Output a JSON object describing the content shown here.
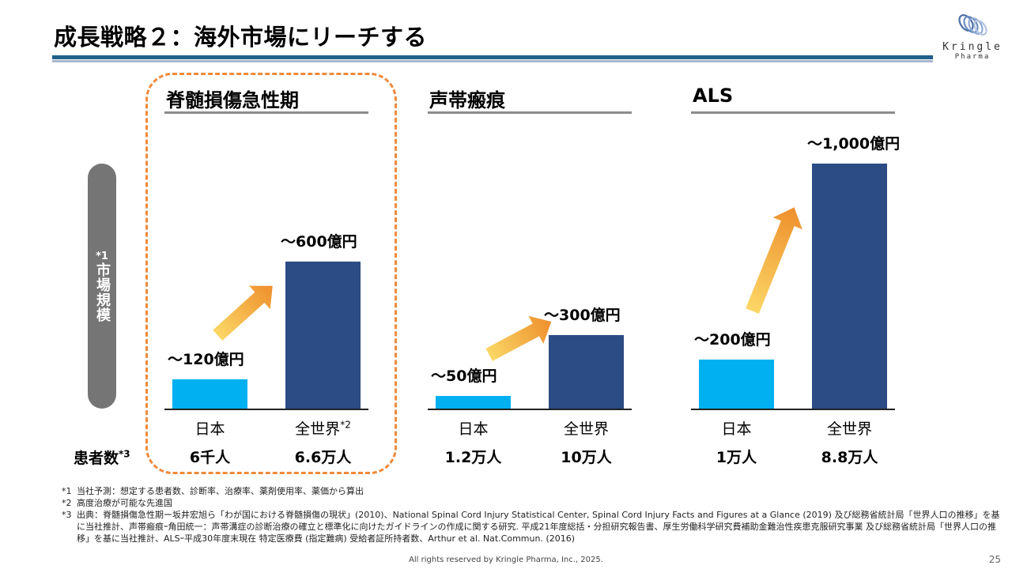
{
  "header": {
    "title": "成長戦略２：海外市場にリーチする",
    "logo": {
      "brand": "Kringle",
      "sub": "Pharma",
      "icon": "kringle-spiral-logo"
    }
  },
  "side_label": {
    "asterisk": "*1",
    "text": "市場規模"
  },
  "row_label": {
    "text": "患者数",
    "sup": "*3"
  },
  "colors": {
    "japan_bar": "#00b0f0",
    "world_bar": "#2b4c84",
    "highlight_border": "#ef8a3b",
    "arrow_start": "#fbd766",
    "arrow_end": "#ee8f2c"
  },
  "chart_data": [
    {
      "type": "bar",
      "title": "脊髄損傷急性期",
      "highlighted": true,
      "categories": [
        "日本",
        "全世界"
      ],
      "category_sups": [
        "",
        "*2"
      ],
      "values": [
        120,
        600
      ],
      "value_labels": [
        "～120億円",
        "～600億円"
      ],
      "patient_counts": [
        "6千人",
        "6.6万人"
      ],
      "unit": "億円",
      "ylim": [
        0,
        1000
      ]
    },
    {
      "type": "bar",
      "title": "声帯瘢痕",
      "highlighted": false,
      "categories": [
        "日本",
        "全世界"
      ],
      "category_sups": [
        "",
        ""
      ],
      "values": [
        50,
        300
      ],
      "value_labels": [
        "～50億円",
        "～300億円"
      ],
      "patient_counts": [
        "1.2万人",
        "10万人"
      ],
      "unit": "億円",
      "ylim": [
        0,
        1000
      ]
    },
    {
      "type": "bar",
      "title": "ALS",
      "highlighted": false,
      "categories": [
        "日本",
        "全世界"
      ],
      "category_sups": [
        "",
        ""
      ],
      "values": [
        200,
        1000
      ],
      "value_labels": [
        "～200億円",
        "～1,000億円"
      ],
      "patient_counts": [
        "1万人",
        "8.8万人"
      ],
      "unit": "億円",
      "ylim": [
        0,
        1000
      ]
    }
  ],
  "notes": [
    {
      "key": "*1",
      "text": "当社予測：想定する患者数、診断率、治療率、薬剤使用率、薬価から算出"
    },
    {
      "key": "*2",
      "text": "高度治療が可能な先進国"
    },
    {
      "key": "*3",
      "text": "出典：脊髄損傷急性期ー坂井宏旭ら「わが国における脊髄損傷の現状」(2010)、National Spinal Cord Injury Statistical Center, Spinal Cord Injury Facts and Figures at a Glance (2019) 及び総務省統計局「世界人口の推移」を基に当社推計、声帯瘢痕ｰ角田統一：声帯溝症の診断治療の確立と標準化に向けたガイドラインの作成に関する研究. 平成21年度総括・分担研究報告書、厚生労働科学研究費補助金難治性疾患克服研究事業 及び総務省統計局「世界人口の推移」を基に当社推計、ALSｰ平成30年度末現在 特定医療費 (指定難病) 受給者証所持者数、Arthur et al. Nat.Commun. (2016)"
    }
  ],
  "footer": {
    "copyright": "All rights reserved by Kringle Pharma, Inc., 2025.",
    "page": "25"
  }
}
